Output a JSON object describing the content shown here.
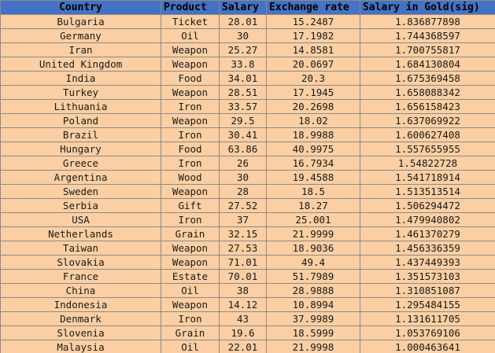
{
  "table": {
    "headers": [
      "Country",
      "Product",
      "Salary",
      "Exchange rate",
      "Salary in Gold(sig)"
    ],
    "rows": [
      [
        "Bulgaria",
        "Ticket",
        "28.01",
        "15.2487",
        "1.836877898"
      ],
      [
        "Germany",
        "Oil",
        "30",
        "17.1982",
        "1.744368597"
      ],
      [
        "Iran",
        "Weapon",
        "25.27",
        "14.8581",
        "1.700755817"
      ],
      [
        "United Kingdom",
        "Weapon",
        "33.8",
        "20.0697",
        "1.684130804"
      ],
      [
        "India",
        "Food",
        "34.01",
        "20.3",
        "1.675369458"
      ],
      [
        "Turkey",
        "Weapon",
        "28.51",
        "17.1945",
        "1.658088342"
      ],
      [
        "Lithuania",
        "Iron",
        "33.57",
        "20.2698",
        "1.656158423"
      ],
      [
        "Poland",
        "Weapon",
        "29.5",
        "18.02",
        "1.637069922"
      ],
      [
        "Brazil",
        "Iron",
        "30.41",
        "18.9988",
        "1.600627408"
      ],
      [
        "Hungary",
        "Food",
        "63.86",
        "40.9975",
        "1.557655955"
      ],
      [
        "Greece",
        "Iron",
        "26",
        "16.7934",
        "1.54822728"
      ],
      [
        "Argentina",
        "Wood",
        "30",
        "19.4588",
        "1.541718914"
      ],
      [
        "Sweden",
        "Weapon",
        "28",
        "18.5",
        "1.513513514"
      ],
      [
        "Serbia",
        "Gift",
        "27.52",
        "18.27",
        "1.506294472"
      ],
      [
        "USA",
        "Iron",
        "37",
        "25.001",
        "1.479940802"
      ],
      [
        "Netherlands",
        "Grain",
        "32.15",
        "21.9999",
        "1.461370279"
      ],
      [
        "Taiwan",
        "Weapon",
        "27.53",
        "18.9036",
        "1.456336359"
      ],
      [
        "Slovakia",
        "Weapon",
        "71.01",
        "49.4",
        "1.437449393"
      ],
      [
        "France",
        "Estate",
        "70.01",
        "51.7989",
        "1.351573103"
      ],
      [
        "China",
        "Oil",
        "38",
        "28.9888",
        "1.310851087"
      ],
      [
        "Indonesia",
        "Weapon",
        "14.12",
        "10.8994",
        "1.295484155"
      ],
      [
        "Denmark",
        "Iron",
        "43",
        "37.9989",
        "1.131611705"
      ],
      [
        "Slovenia",
        "Grain",
        "19.6",
        "18.5999",
        "1.053769106"
      ],
      [
        "Malaysia",
        "Oil",
        "22.01",
        "21.9998",
        "1.000463641"
      ]
    ]
  },
  "colors": {
    "header_fill": "#4472c4",
    "row_fill": "#fbcfa3",
    "grid_line": "#8a8a8a"
  }
}
